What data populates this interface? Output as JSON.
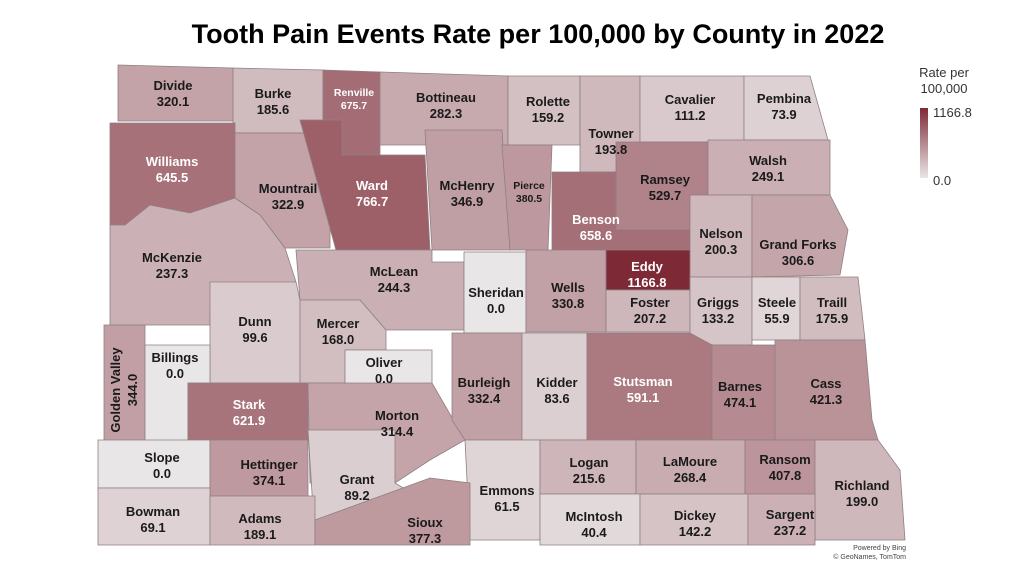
{
  "title": "Tooth Pain Events Rate per 100,000 by County in 2022",
  "legend": {
    "title_line1": "Rate per",
    "title_line2": "100,000",
    "max_label": "1166.8",
    "min_label": "0.0",
    "max_value": 1166.8,
    "min_value": 0.0,
    "color_low": "#e9e6e7",
    "color_high": "#7e2a36"
  },
  "credit": {
    "line1": "Powered by Bing",
    "line2": "© GeoNames, TomTom"
  },
  "chart_data": {
    "type": "choropleth",
    "region": "North Dakota",
    "year": "2022",
    "counties": [
      {
        "name": "Divide",
        "value": "320.1"
      },
      {
        "name": "Burke",
        "value": "185.6"
      },
      {
        "name": "Renville",
        "value": "675.7"
      },
      {
        "name": "Bottineau",
        "value": "282.3"
      },
      {
        "name": "Rolette",
        "value": "159.2"
      },
      {
        "name": "Towner",
        "value": "193.8"
      },
      {
        "name": "Cavalier",
        "value": "111.2"
      },
      {
        "name": "Pembina",
        "value": "73.9"
      },
      {
        "name": "Williams",
        "value": "645.5"
      },
      {
        "name": "Mountrail",
        "value": "322.9"
      },
      {
        "name": "Ward",
        "value": "766.7"
      },
      {
        "name": "McHenry",
        "value": "346.9"
      },
      {
        "name": "Pierce",
        "value": "380.5"
      },
      {
        "name": "Ramsey",
        "value": "529.7"
      },
      {
        "name": "Walsh",
        "value": "249.1"
      },
      {
        "name": "Benson",
        "value": "658.6"
      },
      {
        "name": "Nelson",
        "value": "200.3"
      },
      {
        "name": "Grand Forks",
        "value": "306.6"
      },
      {
        "name": "McKenzie",
        "value": "237.3"
      },
      {
        "name": "McLean",
        "value": "244.3"
      },
      {
        "name": "Sheridan",
        "value": "0.0"
      },
      {
        "name": "Wells",
        "value": "330.8"
      },
      {
        "name": "Eddy",
        "value": "1166.8"
      },
      {
        "name": "Foster",
        "value": "207.2"
      },
      {
        "name": "Griggs",
        "value": "133.2"
      },
      {
        "name": "Steele",
        "value": "55.9"
      },
      {
        "name": "Traill",
        "value": "175.9"
      },
      {
        "name": "Dunn",
        "value": "99.6"
      },
      {
        "name": "Mercer",
        "value": "168.0"
      },
      {
        "name": "Oliver",
        "value": "0.0"
      },
      {
        "name": "Golden Valley",
        "value": "344.0"
      },
      {
        "name": "Billings",
        "value": "0.0"
      },
      {
        "name": "Stark",
        "value": "621.9"
      },
      {
        "name": "Morton",
        "value": "314.4"
      },
      {
        "name": "Burleigh",
        "value": "332.4"
      },
      {
        "name": "Kidder",
        "value": "83.6"
      },
      {
        "name": "Stutsman",
        "value": "591.1"
      },
      {
        "name": "Barnes",
        "value": "474.1"
      },
      {
        "name": "Cass",
        "value": "421.3"
      },
      {
        "name": "Slope",
        "value": "0.0"
      },
      {
        "name": "Hettinger",
        "value": "374.1"
      },
      {
        "name": "Grant",
        "value": "89.2"
      },
      {
        "name": "Emmons",
        "value": "61.5"
      },
      {
        "name": "Logan",
        "value": "215.6"
      },
      {
        "name": "LaMoure",
        "value": "268.4"
      },
      {
        "name": "Ransom",
        "value": "407.8"
      },
      {
        "name": "Richland",
        "value": "199.0"
      },
      {
        "name": "Bowman",
        "value": "69.1"
      },
      {
        "name": "Adams",
        "value": "189.1"
      },
      {
        "name": "Sioux",
        "value": "377.3"
      },
      {
        "name": "McIntosh",
        "value": "40.4"
      },
      {
        "name": "Dickey",
        "value": "142.2"
      },
      {
        "name": "Sargent",
        "value": "237.2"
      }
    ]
  }
}
